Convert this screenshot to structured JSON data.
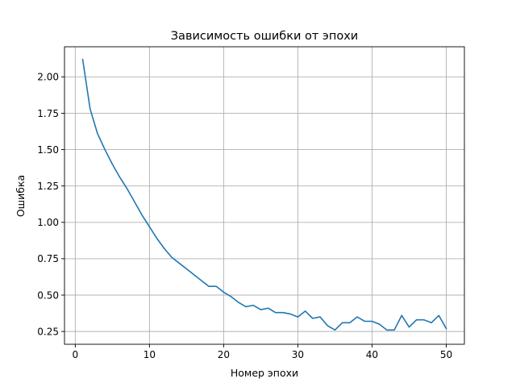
{
  "chart_data": {
    "type": "line",
    "title": "Зависимость ошибки от эпохи",
    "xlabel": "Номер эпохи",
    "ylabel": "Ошибка",
    "xlim": [
      -1.45,
      52.45
    ],
    "ylim": [
      0.162,
      2.207
    ],
    "x_ticks": [
      0,
      10,
      20,
      30,
      40,
      50
    ],
    "y_ticks": [
      0.25,
      0.5,
      0.75,
      1.0,
      1.25,
      1.5,
      1.75,
      2.0
    ],
    "y_tick_labels": [
      "0.25",
      "0.50",
      "0.75",
      "1.00",
      "1.25",
      "1.50",
      "1.75",
      "2.00"
    ],
    "grid": true,
    "colors": {
      "line": "#1f77b4"
    },
    "series": [
      {
        "x": [
          1,
          2,
          3,
          4,
          5,
          6,
          7,
          8,
          9,
          10,
          11,
          12,
          13,
          14,
          15,
          16,
          17,
          18,
          19,
          20,
          21,
          22,
          23,
          24,
          25,
          26,
          27,
          28,
          29,
          30,
          31,
          32,
          33,
          34,
          35,
          36,
          37,
          38,
          39,
          40,
          41,
          42,
          43,
          44,
          45,
          46,
          47,
          48,
          49,
          50
        ],
        "values": [
          2.12,
          1.78,
          1.61,
          1.5,
          1.4,
          1.31,
          1.23,
          1.14,
          1.05,
          0.97,
          0.89,
          0.82,
          0.76,
          0.72,
          0.68,
          0.64,
          0.6,
          0.56,
          0.56,
          0.52,
          0.49,
          0.45,
          0.42,
          0.43,
          0.4,
          0.41,
          0.38,
          0.38,
          0.37,
          0.35,
          0.39,
          0.34,
          0.35,
          0.29,
          0.26,
          0.31,
          0.31,
          0.35,
          0.32,
          0.32,
          0.3,
          0.26,
          0.26,
          0.36,
          0.28,
          0.33,
          0.33,
          0.31,
          0.36,
          0.27
        ]
      }
    ]
  }
}
